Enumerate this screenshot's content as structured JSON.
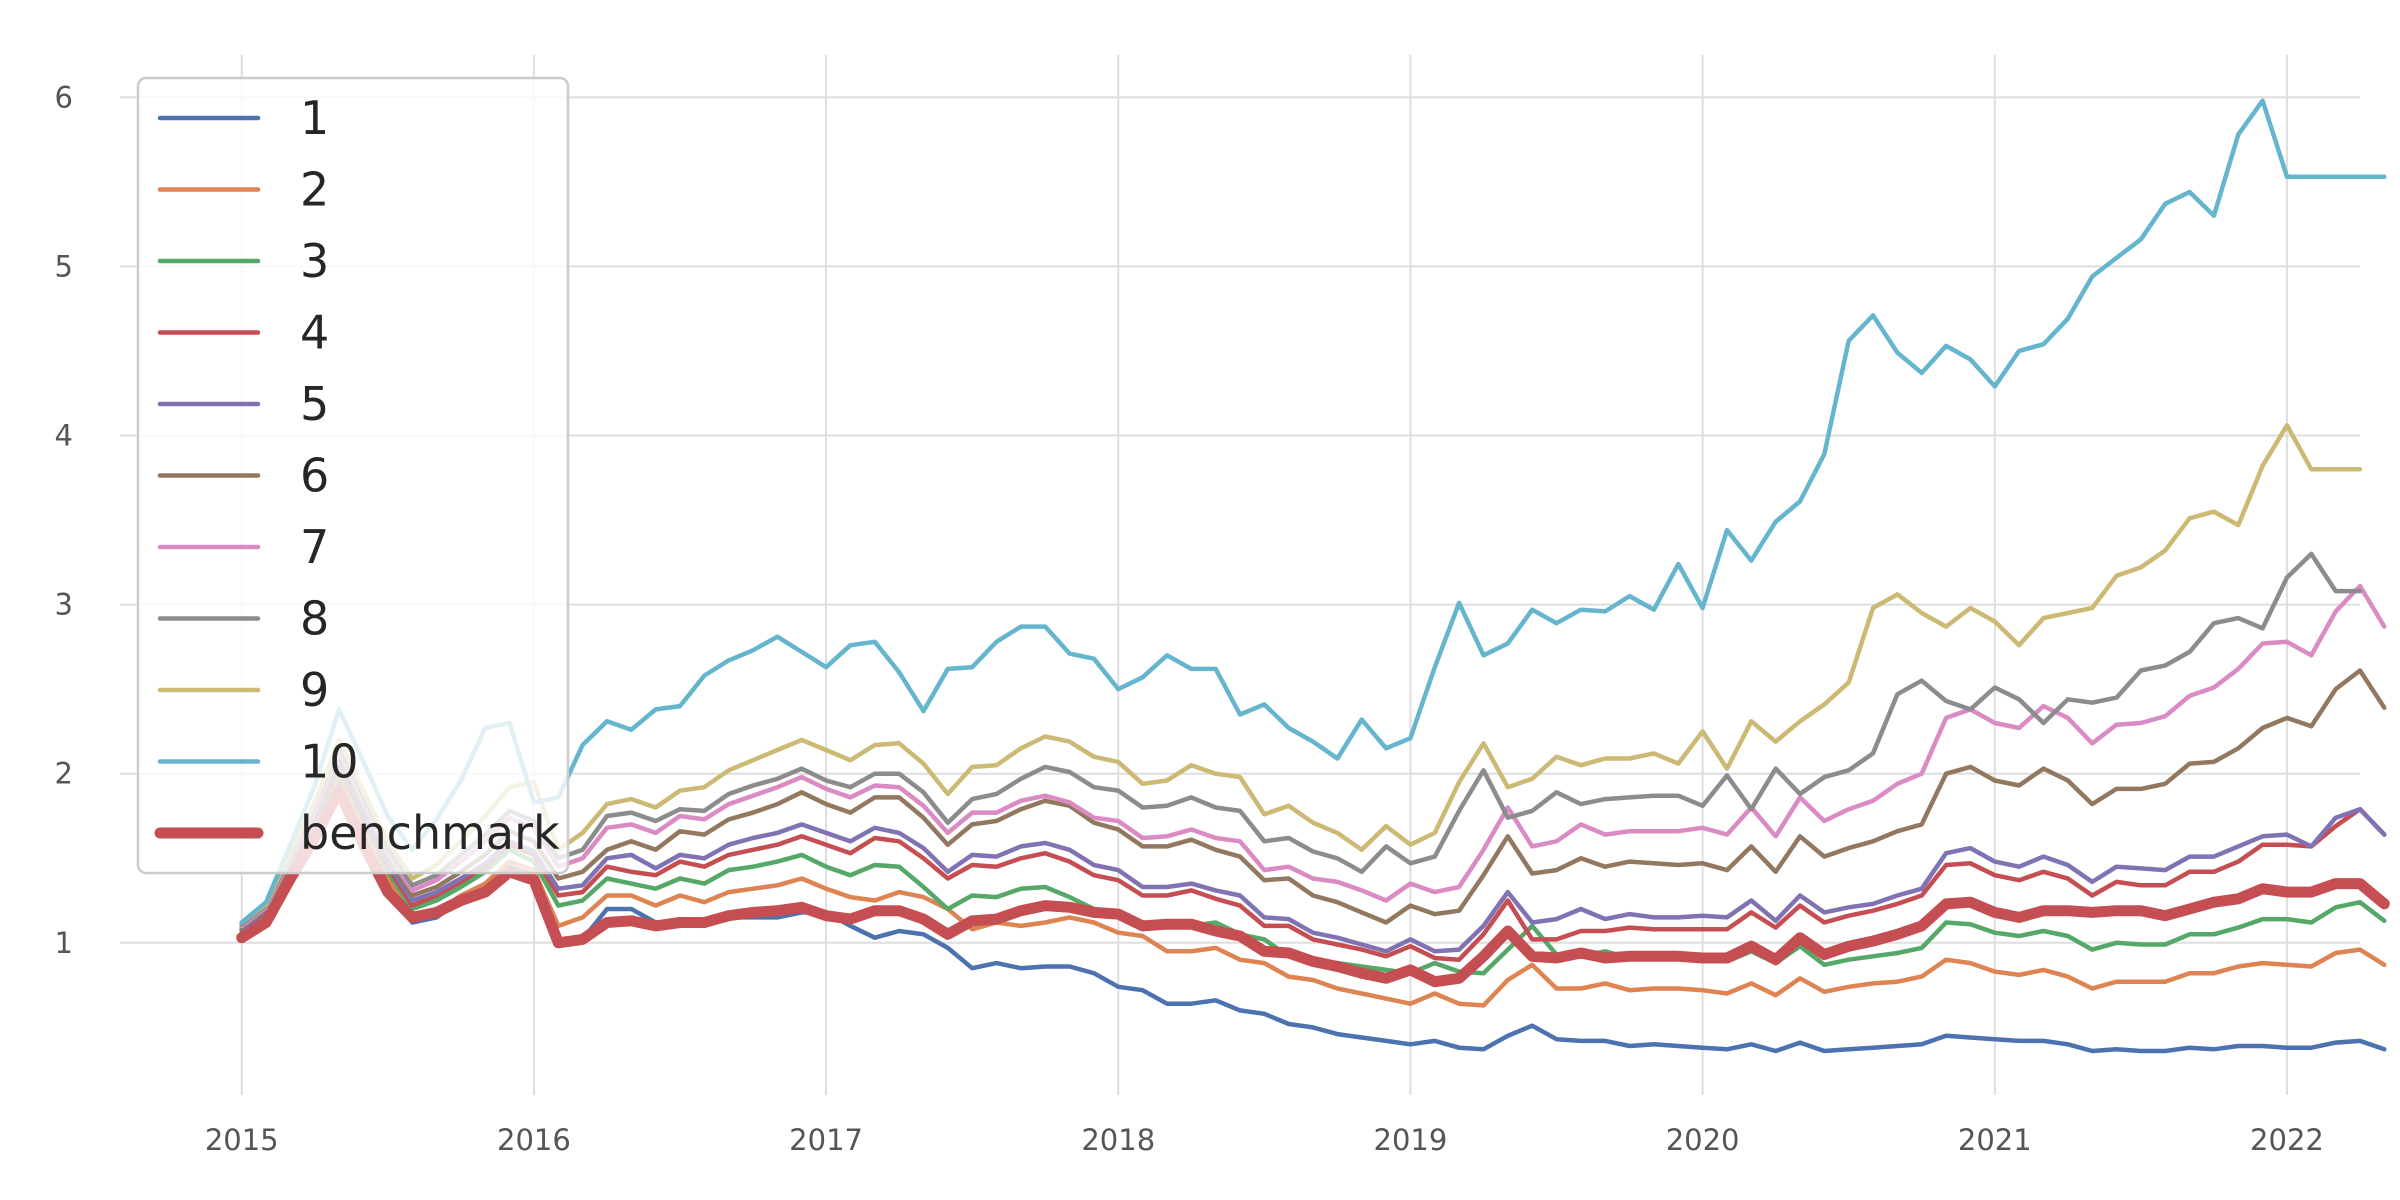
{
  "chart_data": {
    "type": "line",
    "title": "",
    "xlabel": "",
    "ylabel": "",
    "x_start": "2015-01",
    "x_freq": "monthly",
    "xlim": [
      "2014-08",
      "2022-04"
    ],
    "ylim": [
      0.1,
      6.25
    ],
    "grid": true,
    "legend_position": "upper-left",
    "x_ticks": [
      "2015",
      "2016",
      "2017",
      "2018",
      "2019",
      "2020",
      "2021",
      "2022"
    ],
    "y_ticks": [
      1,
      2,
      3,
      4,
      5,
      6
    ],
    "series": [
      {
        "name": "1",
        "color": "#4c72b0",
        "width": "normal",
        "values": [
          1.05,
          1.15,
          1.4,
          1.65,
          1.97,
          1.65,
          1.35,
          1.12,
          1.15,
          1.25,
          1.32,
          1.45,
          1.4,
          1.0,
          1.02,
          1.2,
          1.2,
          1.12,
          1.12,
          1.1,
          1.15,
          1.15,
          1.15,
          1.18,
          1.18,
          1.1,
          1.03,
          1.07,
          1.05,
          0.97,
          0.85,
          0.88,
          0.85,
          0.86,
          0.86,
          0.82,
          0.74,
          0.72,
          0.64,
          0.64,
          0.66,
          0.6,
          0.58,
          0.52,
          0.5,
          0.46,
          0.44,
          0.42,
          0.4,
          0.42,
          0.38,
          0.37,
          0.45,
          0.51,
          0.43,
          0.42,
          0.42,
          0.39,
          0.4,
          0.39,
          0.38,
          0.37,
          0.4,
          0.36,
          0.41,
          0.36,
          0.37,
          0.38,
          0.39,
          0.4,
          0.45,
          0.44,
          0.43,
          0.42,
          0.42,
          0.4,
          0.36,
          0.37,
          0.36,
          0.36,
          0.38,
          0.37,
          0.39,
          0.39,
          0.38,
          0.38,
          0.41,
          0.42,
          0.37
        ]
      },
      {
        "name": "2",
        "color": "#dd8452",
        "width": "normal",
        "values": [
          1.06,
          1.16,
          1.42,
          1.68,
          2.0,
          1.68,
          1.38,
          1.15,
          1.18,
          1.28,
          1.35,
          1.48,
          1.43,
          1.1,
          1.15,
          1.28,
          1.28,
          1.22,
          1.28,
          1.24,
          1.3,
          1.32,
          1.34,
          1.38,
          1.32,
          1.27,
          1.25,
          1.3,
          1.27,
          1.2,
          1.08,
          1.12,
          1.1,
          1.12,
          1.15,
          1.12,
          1.06,
          1.04,
          0.95,
          0.95,
          0.97,
          0.9,
          0.88,
          0.8,
          0.78,
          0.73,
          0.7,
          0.67,
          0.64,
          0.7,
          0.64,
          0.63,
          0.78,
          0.87,
          0.73,
          0.73,
          0.76,
          0.72,
          0.73,
          0.73,
          0.72,
          0.7,
          0.76,
          0.69,
          0.79,
          0.71,
          0.74,
          0.76,
          0.77,
          0.8,
          0.9,
          0.88,
          0.83,
          0.81,
          0.84,
          0.8,
          0.73,
          0.77,
          0.77,
          0.77,
          0.82,
          0.82,
          0.86,
          0.88,
          0.87,
          0.86,
          0.94,
          0.96,
          0.87
        ]
      },
      {
        "name": "3",
        "color": "#55a868",
        "width": "normal",
        "values": [
          1.07,
          1.17,
          1.44,
          1.7,
          2.03,
          1.72,
          1.42,
          1.2,
          1.25,
          1.33,
          1.42,
          1.55,
          1.48,
          1.22,
          1.25,
          1.38,
          1.35,
          1.32,
          1.38,
          1.35,
          1.43,
          1.45,
          1.48,
          1.52,
          1.45,
          1.4,
          1.46,
          1.45,
          1.33,
          1.2,
          1.28,
          1.27,
          1.32,
          1.33,
          1.27,
          1.2,
          1.18,
          1.12,
          1.11,
          1.1,
          1.12,
          1.05,
          1.02,
          0.92,
          0.9,
          0.88,
          0.86,
          0.84,
          0.82,
          0.88,
          0.83,
          0.82,
          0.96,
          1.1,
          0.93,
          0.92,
          0.95,
          0.91,
          0.92,
          0.92,
          0.91,
          0.89,
          0.95,
          0.88,
          0.98,
          0.87,
          0.9,
          0.92,
          0.94,
          0.97,
          1.12,
          1.11,
          1.06,
          1.04,
          1.07,
          1.04,
          0.96,
          1.0,
          0.99,
          0.99,
          1.05,
          1.05,
          1.09,
          1.14,
          1.14,
          1.12,
          1.21,
          1.24,
          1.13
        ]
      },
      {
        "name": "4",
        "color": "#c44e52",
        "width": "normal",
        "values": [
          1.08,
          1.18,
          1.45,
          1.72,
          2.05,
          1.75,
          1.45,
          1.22,
          1.28,
          1.36,
          1.45,
          1.58,
          1.52,
          1.28,
          1.3,
          1.45,
          1.42,
          1.4,
          1.48,
          1.45,
          1.52,
          1.55,
          1.58,
          1.63,
          1.58,
          1.53,
          1.62,
          1.6,
          1.5,
          1.38,
          1.46,
          1.45,
          1.5,
          1.53,
          1.48,
          1.4,
          1.37,
          1.28,
          1.28,
          1.31,
          1.26,
          1.22,
          1.1,
          1.1,
          1.02,
          0.99,
          0.96,
          0.92,
          0.98,
          0.91,
          0.9,
          1.05,
          1.25,
          1.02,
          1.02,
          1.07,
          1.07,
          1.09,
          1.08,
          1.08,
          1.08,
          1.08,
          1.18,
          1.09,
          1.22,
          1.12,
          1.16,
          1.19,
          1.23,
          1.28,
          1.46,
          1.47,
          1.4,
          1.37,
          1.42,
          1.38,
          1.28,
          1.36,
          1.34,
          1.34,
          1.42,
          1.42,
          1.48,
          1.58,
          1.58,
          1.57,
          1.69,
          1.79,
          1.64
        ]
      },
      {
        "name": "5",
        "color": "#8172b3",
        "width": "normal",
        "values": [
          1.08,
          1.19,
          1.46,
          1.73,
          2.07,
          1.77,
          1.47,
          1.25,
          1.3,
          1.38,
          1.47,
          1.6,
          1.54,
          1.32,
          1.34,
          1.5,
          1.52,
          1.44,
          1.52,
          1.5,
          1.58,
          1.62,
          1.65,
          1.7,
          1.65,
          1.6,
          1.68,
          1.65,
          1.56,
          1.42,
          1.52,
          1.51,
          1.57,
          1.59,
          1.55,
          1.46,
          1.43,
          1.33,
          1.33,
          1.35,
          1.31,
          1.28,
          1.15,
          1.14,
          1.06,
          1.03,
          0.99,
          0.95,
          1.02,
          0.95,
          0.96,
          1.1,
          1.3,
          1.12,
          1.14,
          1.2,
          1.14,
          1.17,
          1.15,
          1.15,
          1.16,
          1.15,
          1.25,
          1.13,
          1.28,
          1.18,
          1.21,
          1.23,
          1.28,
          1.32,
          1.53,
          1.56,
          1.48,
          1.45,
          1.51,
          1.46,
          1.36,
          1.45,
          1.44,
          1.43,
          1.51,
          1.51,
          1.57,
          1.63,
          1.64,
          1.57,
          1.74,
          1.79,
          1.64
        ]
      },
      {
        "name": "6",
        "color": "#937860",
        "width": "normal",
        "values": [
          1.09,
          1.2,
          1.48,
          1.76,
          2.1,
          1.8,
          1.5,
          1.28,
          1.33,
          1.42,
          1.52,
          1.66,
          1.6,
          1.38,
          1.42,
          1.55,
          1.6,
          1.55,
          1.66,
          1.64,
          1.73,
          1.77,
          1.82,
          1.89,
          1.82,
          1.77,
          1.86,
          1.86,
          1.74,
          1.58,
          1.7,
          1.72,
          1.79,
          1.84,
          1.81,
          1.71,
          1.67,
          1.57,
          1.57,
          1.61,
          1.55,
          1.51,
          1.37,
          1.38,
          1.28,
          1.24,
          1.18,
          1.12,
          1.22,
          1.17,
          1.19,
          1.4,
          1.63,
          1.41,
          1.43,
          1.5,
          1.45,
          1.48,
          1.47,
          1.46,
          1.47,
          1.43,
          1.57,
          1.42,
          1.63,
          1.51,
          1.56,
          1.6,
          1.66,
          1.7,
          2.0,
          2.04,
          1.96,
          1.93,
          2.03,
          1.96,
          1.82,
          1.91,
          1.91,
          1.94,
          2.06,
          2.07,
          2.15,
          2.27,
          2.33,
          2.28,
          2.5,
          2.61,
          2.39
        ]
      },
      {
        "name": "7",
        "color": "#da8bc3",
        "width": "normal",
        "values": [
          1.1,
          1.21,
          1.5,
          1.78,
          2.13,
          1.83,
          1.53,
          1.31,
          1.37,
          1.48,
          1.6,
          1.74,
          1.68,
          1.45,
          1.5,
          1.68,
          1.7,
          1.65,
          1.75,
          1.73,
          1.82,
          1.87,
          1.92,
          1.98,
          1.91,
          1.86,
          1.93,
          1.92,
          1.81,
          1.65,
          1.77,
          1.77,
          1.84,
          1.87,
          1.83,
          1.74,
          1.72,
          1.62,
          1.63,
          1.67,
          1.62,
          1.6,
          1.43,
          1.45,
          1.38,
          1.36,
          1.31,
          1.25,
          1.35,
          1.3,
          1.33,
          1.55,
          1.8,
          1.57,
          1.6,
          1.7,
          1.64,
          1.66,
          1.66,
          1.66,
          1.68,
          1.64,
          1.8,
          1.63,
          1.86,
          1.72,
          1.79,
          1.84,
          1.94,
          2.0,
          2.33,
          2.38,
          2.3,
          2.27,
          2.4,
          2.33,
          2.18,
          2.29,
          2.3,
          2.34,
          2.46,
          2.51,
          2.62,
          2.77,
          2.78,
          2.7,
          2.96,
          3.11,
          2.87
        ]
      },
      {
        "name": "8",
        "color": "#8c8c8c",
        "width": "normal",
        "values": [
          1.11,
          1.22,
          1.52,
          1.8,
          2.16,
          1.86,
          1.56,
          1.34,
          1.4,
          1.52,
          1.64,
          1.78,
          1.72,
          1.5,
          1.55,
          1.75,
          1.77,
          1.72,
          1.79,
          1.78,
          1.88,
          1.93,
          1.97,
          2.03,
          1.96,
          1.92,
          2.0,
          2.0,
          1.89,
          1.71,
          1.85,
          1.88,
          1.97,
          2.04,
          2.01,
          1.92,
          1.9,
          1.8,
          1.81,
          1.86,
          1.8,
          1.78,
          1.6,
          1.62,
          1.54,
          1.5,
          1.42,
          1.57,
          1.47,
          1.51,
          1.78,
          2.02,
          1.74,
          1.78,
          1.89,
          1.82,
          1.85,
          1.86,
          1.87,
          1.87,
          1.81,
          1.99,
          1.79,
          2.03,
          1.88,
          1.98,
          2.02,
          2.12,
          2.47,
          2.55,
          2.43,
          2.38,
          2.51,
          2.44,
          2.3,
          2.44,
          2.42,
          2.45,
          2.61,
          2.64,
          2.72,
          2.89,
          2.92,
          2.86,
          3.16,
          3.3,
          3.08,
          3.08
        ]
      },
      {
        "name": "9",
        "color": "#ccb974",
        "width": "normal",
        "values": [
          1.12,
          1.23,
          1.54,
          1.83,
          2.2,
          1.9,
          1.6,
          1.38,
          1.46,
          1.6,
          1.75,
          1.92,
          1.95,
          1.55,
          1.65,
          1.82,
          1.85,
          1.8,
          1.9,
          1.92,
          2.02,
          2.08,
          2.14,
          2.2,
          2.14,
          2.08,
          2.17,
          2.18,
          2.06,
          1.88,
          2.04,
          2.05,
          2.15,
          2.22,
          2.19,
          2.1,
          2.07,
          1.94,
          1.96,
          2.05,
          2.0,
          1.98,
          1.76,
          1.81,
          1.71,
          1.65,
          1.55,
          1.69,
          1.58,
          1.65,
          1.95,
          2.18,
          1.92,
          1.97,
          2.1,
          2.05,
          2.09,
          2.09,
          2.12,
          2.06,
          2.25,
          2.03,
          2.31,
          2.19,
          2.31,
          2.41,
          2.54,
          2.98,
          3.06,
          2.95,
          2.87,
          2.98,
          2.9,
          2.76,
          2.92,
          2.95,
          2.98,
          3.17,
          3.22,
          3.32,
          3.51,
          3.55,
          3.47,
          3.82,
          4.06,
          3.8,
          3.8,
          3.8
        ]
      },
      {
        "name": "10",
        "color": "#64b5cd",
        "width": "normal",
        "values": [
          1.12,
          1.24,
          1.58,
          1.93,
          2.38,
          2.07,
          1.75,
          1.55,
          1.73,
          1.96,
          2.27,
          2.3,
          1.83,
          1.86,
          2.17,
          2.31,
          2.26,
          2.38,
          2.4,
          2.58,
          2.67,
          2.73,
          2.81,
          2.72,
          2.63,
          2.76,
          2.78,
          2.6,
          2.37,
          2.62,
          2.63,
          2.78,
          2.87,
          2.87,
          2.71,
          2.68,
          2.5,
          2.57,
          2.7,
          2.62,
          2.62,
          2.35,
          2.41,
          2.27,
          2.19,
          2.09,
          2.32,
          2.15,
          2.21,
          2.63,
          3.01,
          2.7,
          2.77,
          2.97,
          2.89,
          2.97,
          2.96,
          3.05,
          2.97,
          3.24,
          2.98,
          3.44,
          3.26,
          3.49,
          3.61,
          3.89,
          4.56,
          4.71,
          4.49,
          4.37,
          4.53,
          4.45,
          4.29,
          4.5,
          4.54,
          4.69,
          4.94,
          5.05,
          5.16,
          5.37,
          5.44,
          5.3,
          5.78,
          5.98,
          5.53,
          5.53,
          5.53,
          5.53,
          5.53
        ]
      },
      {
        "name": "benchmark",
        "color": "#c44e52",
        "width": "thick",
        "values": [
          1.03,
          1.12,
          1.38,
          1.62,
          1.9,
          1.58,
          1.3,
          1.15,
          1.18,
          1.25,
          1.3,
          1.42,
          1.37,
          1.0,
          1.02,
          1.12,
          1.13,
          1.1,
          1.12,
          1.12,
          1.16,
          1.18,
          1.19,
          1.21,
          1.16,
          1.14,
          1.19,
          1.19,
          1.14,
          1.05,
          1.13,
          1.14,
          1.19,
          1.22,
          1.21,
          1.18,
          1.17,
          1.1,
          1.11,
          1.11,
          1.07,
          1.04,
          0.95,
          0.94,
          0.89,
          0.86,
          0.82,
          0.79,
          0.84,
          0.77,
          0.79,
          0.92,
          1.07,
          0.92,
          0.91,
          0.94,
          0.91,
          0.92,
          0.92,
          0.92,
          0.91,
          0.91,
          0.98,
          0.9,
          1.03,
          0.93,
          0.98,
          1.01,
          1.05,
          1.1,
          1.23,
          1.24,
          1.18,
          1.15,
          1.19,
          1.19,
          1.18,
          1.19,
          1.19,
          1.16,
          1.2,
          1.24,
          1.26,
          1.32,
          1.3,
          1.3,
          1.35,
          1.35,
          1.23
        ]
      }
    ]
  }
}
